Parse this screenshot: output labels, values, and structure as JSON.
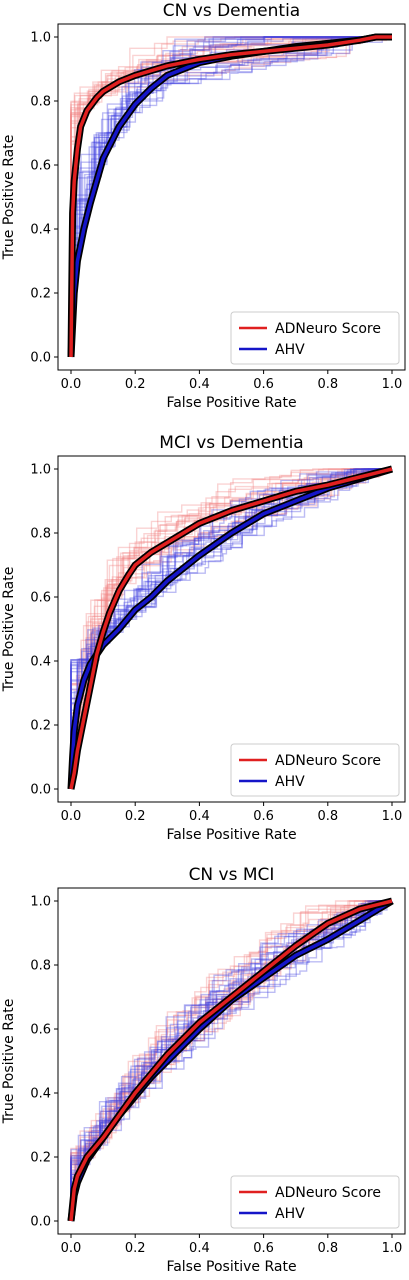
{
  "colors": {
    "model_a": "#e02020",
    "model_b": "#1515c8",
    "mean_outline": "#000000",
    "resample_a": "#f08080",
    "resample_b": "#4040e0"
  },
  "chart_data": [
    {
      "type": "line",
      "title": "CN vs Dementia",
      "xlabel": "False Positive Rate",
      "ylabel": "True Positive Rate",
      "xlim": [
        0,
        1
      ],
      "ylim": [
        0,
        1
      ],
      "xticks": [
        "0.0",
        "0.2",
        "0.4",
        "0.6",
        "0.8",
        "1.0"
      ],
      "yticks": [
        "0.0",
        "0.2",
        "0.4",
        "0.6",
        "0.8",
        "1.0"
      ],
      "legend": {
        "position": "bottom-right",
        "entries": [
          "ADNeuro Score",
          "AHV"
        ]
      },
      "resample_count": 20,
      "series": [
        {
          "name": "ADNeuro Score",
          "x": [
            0,
            0.005,
            0.01,
            0.02,
            0.03,
            0.05,
            0.08,
            0.1,
            0.15,
            0.2,
            0.3,
            0.4,
            0.5,
            0.6,
            0.7,
            0.8,
            0.9,
            0.95,
            1.0
          ],
          "y": [
            0,
            0.45,
            0.55,
            0.65,
            0.72,
            0.77,
            0.81,
            0.83,
            0.86,
            0.88,
            0.91,
            0.93,
            0.945,
            0.955,
            0.965,
            0.975,
            0.99,
            1.0,
            1.0
          ]
        },
        {
          "name": "AHV",
          "x": [
            0,
            0.005,
            0.01,
            0.02,
            0.04,
            0.06,
            0.08,
            0.1,
            0.15,
            0.2,
            0.25,
            0.3,
            0.4,
            0.5,
            0.6,
            0.7,
            0.8,
            0.9,
            0.95,
            1.0
          ],
          "y": [
            0,
            0.1,
            0.2,
            0.3,
            0.4,
            0.48,
            0.55,
            0.62,
            0.72,
            0.79,
            0.84,
            0.88,
            0.92,
            0.94,
            0.955,
            0.97,
            0.98,
            0.99,
            1.0,
            1.0
          ]
        }
      ]
    },
    {
      "type": "line",
      "title": "MCI vs Dementia",
      "xlabel": "False Positive Rate",
      "ylabel": "True Positive Rate",
      "xlim": [
        0,
        1
      ],
      "ylim": [
        0,
        1
      ],
      "xticks": [
        "0.0",
        "0.2",
        "0.4",
        "0.6",
        "0.8",
        "1.0"
      ],
      "yticks": [
        "0.0",
        "0.2",
        "0.4",
        "0.6",
        "0.8",
        "1.0"
      ],
      "legend": {
        "position": "bottom-right",
        "entries": [
          "ADNeuro Score",
          "AHV"
        ]
      },
      "resample_count": 20,
      "series": [
        {
          "name": "ADNeuro Score",
          "x": [
            0,
            0.01,
            0.02,
            0.04,
            0.06,
            0.08,
            0.1,
            0.12,
            0.15,
            0.18,
            0.2,
            0.25,
            0.3,
            0.35,
            0.4,
            0.5,
            0.6,
            0.7,
            0.8,
            0.9,
            1.0
          ],
          "y": [
            0,
            0.05,
            0.12,
            0.22,
            0.32,
            0.42,
            0.49,
            0.55,
            0.62,
            0.67,
            0.7,
            0.74,
            0.77,
            0.8,
            0.83,
            0.87,
            0.9,
            0.93,
            0.95,
            0.975,
            1.0
          ]
        },
        {
          "name": "AHV",
          "x": [
            0,
            0.005,
            0.01,
            0.02,
            0.04,
            0.06,
            0.08,
            0.1,
            0.12,
            0.15,
            0.2,
            0.25,
            0.3,
            0.4,
            0.5,
            0.6,
            0.7,
            0.8,
            0.9,
            1.0
          ],
          "y": [
            0,
            0.1,
            0.18,
            0.26,
            0.34,
            0.39,
            0.42,
            0.45,
            0.47,
            0.5,
            0.56,
            0.6,
            0.65,
            0.73,
            0.8,
            0.86,
            0.9,
            0.94,
            0.97,
            1.0
          ]
        }
      ]
    },
    {
      "type": "line",
      "title": "CN vs MCI",
      "xlabel": "False Positive Rate",
      "ylabel": "True Positive Rate",
      "xlim": [
        0,
        1
      ],
      "ylim": [
        0,
        1
      ],
      "xticks": [
        "0.0",
        "0.2",
        "0.4",
        "0.6",
        "0.8",
        "1.0"
      ],
      "yticks": [
        "0.0",
        "0.2",
        "0.4",
        "0.6",
        "0.8",
        "1.0"
      ],
      "legend": {
        "position": "bottom-right",
        "entries": [
          "ADNeuro Score",
          "AHV"
        ]
      },
      "resample_count": 20,
      "series": [
        {
          "name": "ADNeuro Score",
          "x": [
            0,
            0.01,
            0.02,
            0.05,
            0.1,
            0.15,
            0.2,
            0.25,
            0.3,
            0.4,
            0.5,
            0.6,
            0.7,
            0.8,
            0.9,
            1.0
          ],
          "y": [
            0,
            0.1,
            0.14,
            0.2,
            0.26,
            0.33,
            0.4,
            0.46,
            0.52,
            0.62,
            0.7,
            0.78,
            0.86,
            0.93,
            0.975,
            1.0
          ]
        },
        {
          "name": "AHV",
          "x": [
            0,
            0.01,
            0.02,
            0.05,
            0.1,
            0.15,
            0.2,
            0.25,
            0.3,
            0.4,
            0.5,
            0.6,
            0.7,
            0.8,
            0.9,
            1.0
          ],
          "y": [
            0,
            0.08,
            0.12,
            0.19,
            0.26,
            0.33,
            0.39,
            0.45,
            0.5,
            0.6,
            0.69,
            0.76,
            0.83,
            0.88,
            0.94,
            1.0
          ]
        }
      ]
    }
  ]
}
